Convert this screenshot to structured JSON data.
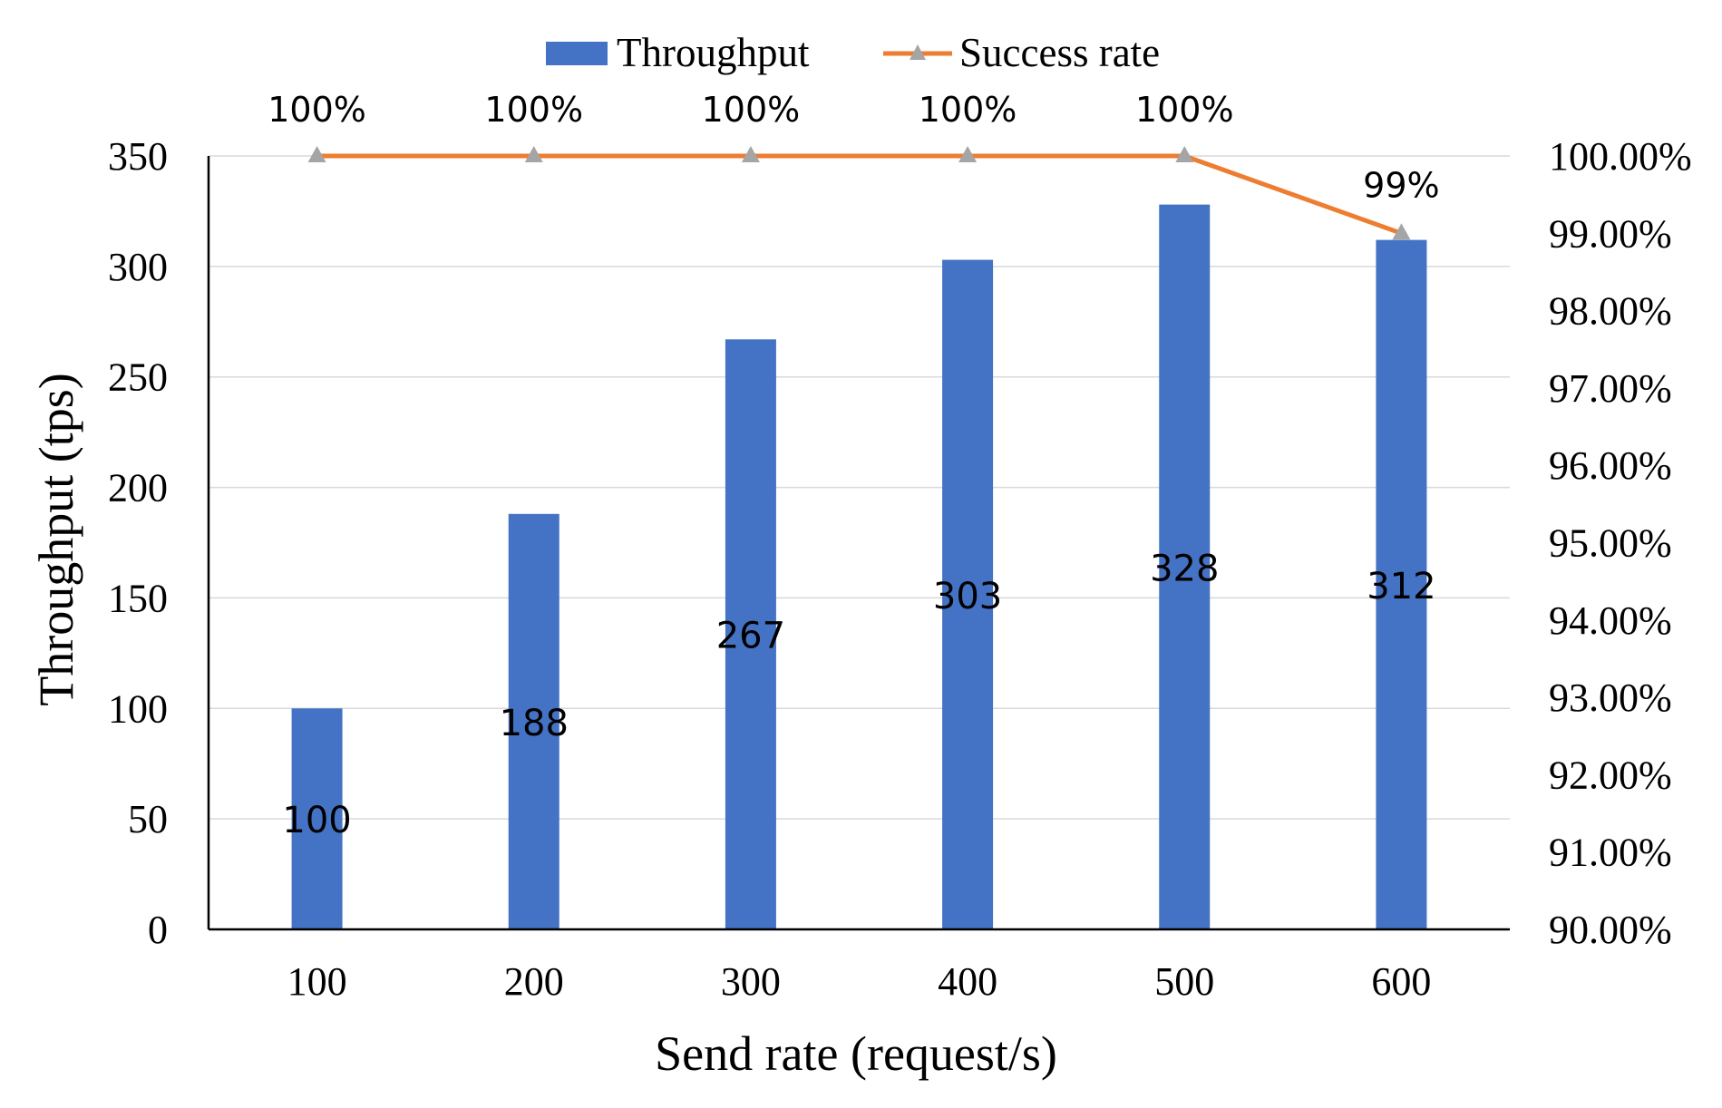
{
  "chart_data": {
    "type": "bar",
    "title": "",
    "xlabel": "Send rate (request/s)",
    "ylabel": "Throughput (tps)",
    "categories": [
      "100",
      "200",
      "300",
      "400",
      "500",
      "600"
    ],
    "ylim": [
      0,
      350
    ],
    "y_ticks": [
      "0",
      "50",
      "100",
      "150",
      "200",
      "250",
      "300",
      "350"
    ],
    "y2lim": [
      90,
      100
    ],
    "y2_ticks": [
      "90.00%",
      "91.00%",
      "92.00%",
      "93.00%",
      "94.00%",
      "95.00%",
      "96.00%",
      "97.00%",
      "98.00%",
      "99.00%",
      "100.00%"
    ],
    "grid": true,
    "legend_position": "top-center",
    "series": [
      {
        "name": "Throughput",
        "type": "bar",
        "axis": "left",
        "color": "#4472c4",
        "values": [
          100,
          188,
          267,
          303,
          328,
          312
        ],
        "labels": [
          "100",
          "188",
          "267",
          "303",
          "328",
          "312"
        ]
      },
      {
        "name": "Success rate",
        "type": "line",
        "axis": "right",
        "color": "#ed7d31",
        "marker_color": "#a5a5a5",
        "values": [
          100,
          100,
          100,
          100,
          100,
          99
        ],
        "labels": [
          "100%",
          "100%",
          "100%",
          "100%",
          "100%",
          "99%"
        ]
      }
    ]
  }
}
